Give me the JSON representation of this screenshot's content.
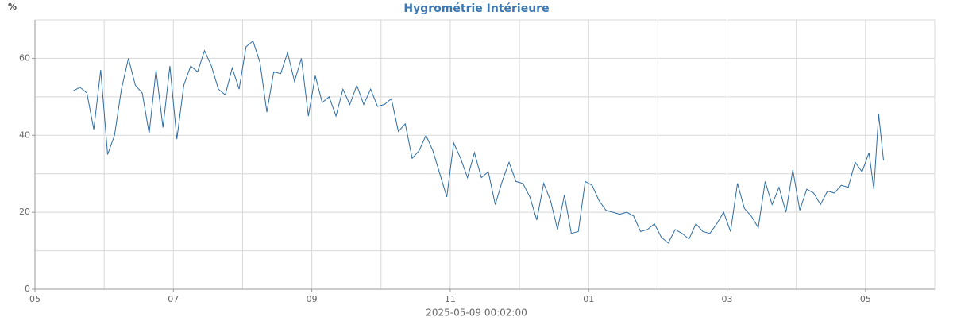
{
  "chart_data": {
    "type": "line",
    "title": "Hygrométrie Intérieure",
    "ylabel": "%",
    "xlabel": "2025-05-09 00:02:00",
    "color": "#2e6da4",
    "xlim": [
      0,
      13
    ],
    "xticks": [
      {
        "value": 0,
        "label": "05"
      },
      {
        "value": 2,
        "label": "07"
      },
      {
        "value": 4,
        "label": "09"
      },
      {
        "value": 6,
        "label": "11"
      },
      {
        "value": 8,
        "label": "01"
      },
      {
        "value": 10,
        "label": "03"
      },
      {
        "value": 12,
        "label": "05"
      }
    ],
    "xgrid_minor": [
      1,
      3,
      5,
      7,
      9,
      11,
      13
    ],
    "ylim": [
      0,
      70
    ],
    "yticks": [
      0,
      20,
      40,
      60
    ],
    "ygrid_minor": [
      10,
      30,
      50,
      70
    ],
    "grid": true,
    "x": [
      0.55,
      0.65,
      0.75,
      0.85,
      0.95,
      1.05,
      1.15,
      1.25,
      1.35,
      1.45,
      1.55,
      1.65,
      1.75,
      1.85,
      1.95,
      2.05,
      2.15,
      2.25,
      2.35,
      2.45,
      2.55,
      2.65,
      2.75,
      2.85,
      2.95,
      3.05,
      3.15,
      3.25,
      3.35,
      3.45,
      3.55,
      3.65,
      3.75,
      3.85,
      3.95,
      4.05,
      4.15,
      4.25,
      4.35,
      4.45,
      4.55,
      4.65,
      4.75,
      4.85,
      4.95,
      5.05,
      5.15,
      5.25,
      5.35,
      5.45,
      5.55,
      5.65,
      5.75,
      5.85,
      5.95,
      6.05,
      6.15,
      6.25,
      6.35,
      6.45,
      6.55,
      6.65,
      6.75,
      6.85,
      6.95,
      7.05,
      7.15,
      7.25,
      7.35,
      7.45,
      7.55,
      7.65,
      7.75,
      7.85,
      7.95,
      8.05,
      8.15,
      8.25,
      8.35,
      8.45,
      8.55,
      8.65,
      8.75,
      8.85,
      8.95,
      9.05,
      9.15,
      9.25,
      9.35,
      9.45,
      9.55,
      9.65,
      9.75,
      9.85,
      9.95,
      10.05,
      10.15,
      10.25,
      10.35,
      10.45,
      10.55,
      10.65,
      10.75,
      10.85,
      10.95,
      11.05,
      11.15,
      11.25,
      11.35,
      11.45,
      11.55,
      11.65,
      11.75,
      11.85,
      11.95,
      12.05,
      12.12,
      12.19,
      12.26
    ],
    "values": [
      51.5,
      52.5,
      51,
      41.5,
      57,
      35,
      40,
      52,
      60,
      53,
      51,
      40.5,
      57,
      42,
      58,
      39,
      53,
      58,
      56.5,
      62,
      58,
      52,
      50.5,
      57.5,
      52,
      63,
      64.5,
      59,
      46,
      56.5,
      56,
      61.5,
      54,
      60,
      45,
      55.5,
      48.5,
      50,
      45,
      52,
      48,
      53,
      48,
      52,
      47.5,
      48,
      49.5,
      41,
      43,
      34,
      36,
      40,
      36,
      30,
      24,
      38,
      34,
      29,
      35.5,
      29,
      30.5,
      22,
      28,
      33,
      28,
      27.5,
      24,
      18,
      27.5,
      23,
      15.5,
      24.5,
      14.5,
      15,
      28,
      27,
      23,
      20.5,
      20,
      19.5,
      20,
      19,
      15,
      15.5,
      17,
      13.5,
      12,
      15.5,
      14.5,
      13,
      17,
      15,
      14.5,
      17,
      20,
      15,
      27.5,
      21,
      19,
      16,
      28,
      22,
      26.5,
      20,
      31,
      20.5,
      26,
      25,
      22,
      25.5,
      25,
      27,
      26.5,
      33,
      30.5,
      35.5,
      26,
      45.5,
      33.5
    ]
  }
}
